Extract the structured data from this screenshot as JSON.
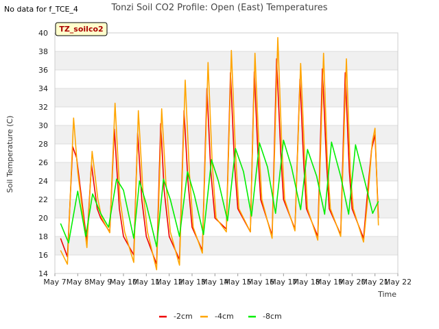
{
  "no_data_note": "No data for f_TCE_4",
  "badge_label": "TZ_soilco2",
  "chart_data": {
    "type": "line",
    "title": "Tonzi Soil CO2 Profile: Open (East) Temperatures",
    "xlabel": "Time",
    "ylabel": "Soil Temperature (C)",
    "xlim": [
      7,
      22
    ],
    "ylim": [
      14,
      40
    ],
    "x_ticks": [
      {
        "value": 7,
        "label": "May 7"
      },
      {
        "value": 8,
        "label": "May 8"
      },
      {
        "value": 9,
        "label": "May 9"
      },
      {
        "value": 10,
        "label": "May 10"
      },
      {
        "value": 11,
        "label": "May 11"
      },
      {
        "value": 12,
        "label": "May 12"
      },
      {
        "value": 13,
        "label": "May 13"
      },
      {
        "value": 14,
        "label": "May 14"
      },
      {
        "value": 15,
        "label": "May 15"
      },
      {
        "value": 16,
        "label": "May 16"
      },
      {
        "value": 17,
        "label": "May 17"
      },
      {
        "value": 18,
        "label": "May 18"
      },
      {
        "value": 19,
        "label": "May 19"
      },
      {
        "value": 20,
        "label": "May 20"
      },
      {
        "value": 21,
        "label": "May 21"
      },
      {
        "value": 22,
        "label": "May 22"
      }
    ],
    "y_ticks": [
      14,
      16,
      18,
      20,
      22,
      24,
      26,
      28,
      30,
      32,
      34,
      36,
      38,
      40
    ],
    "legend_position": "bottom-center",
    "series": [
      {
        "name": "-2cm",
        "color": "#ee0000",
        "x": [
          7.25,
          7.55,
          7.78,
          7.95,
          8.4,
          8.6,
          8.85,
          9.0,
          9.4,
          9.6,
          9.82,
          10.0,
          10.45,
          10.62,
          10.8,
          11.0,
          11.45,
          11.63,
          11.78,
          12.0,
          12.45,
          12.65,
          12.82,
          13.0,
          13.45,
          13.65,
          13.82,
          14.0,
          14.5,
          14.68,
          14.85,
          15.0,
          15.55,
          15.72,
          15.88,
          16.0,
          16.5,
          16.7,
          16.88,
          17.0,
          17.5,
          17.72,
          17.88,
          18.0,
          18.5,
          18.7,
          18.88,
          19.0,
          19.5,
          19.7,
          19.88,
          20.0,
          20.5,
          20.7,
          20.85,
          21.0,
          21.15
        ],
        "y": [
          17.8,
          15.8,
          27.7,
          26.5,
          17.4,
          25.8,
          21.0,
          20.0,
          18.5,
          29.6,
          21.0,
          18.0,
          16.0,
          29.2,
          22.0,
          18.0,
          15.0,
          30.2,
          23.0,
          18.0,
          15.5,
          31.6,
          24.0,
          19.0,
          16.5,
          34.0,
          25.0,
          20.0,
          18.8,
          35.7,
          26.0,
          21.0,
          18.5,
          35.8,
          27.0,
          22.0,
          18.1,
          37.2,
          27.0,
          22.0,
          18.8,
          35.0,
          26.0,
          21.0,
          18.0,
          36.1,
          26.0,
          21.0,
          18.2,
          35.7,
          25.0,
          21.0,
          17.8,
          23.5,
          27.4,
          29.0,
          20.0
        ]
      },
      {
        "name": "-4cm",
        "color": "#ffa500",
        "x": [
          7.25,
          7.55,
          7.82,
          8.0,
          8.4,
          8.63,
          8.88,
          9.05,
          9.4,
          9.63,
          9.85,
          10.05,
          10.45,
          10.65,
          10.85,
          11.05,
          11.45,
          11.67,
          11.85,
          12.05,
          12.45,
          12.7,
          12.88,
          13.05,
          13.45,
          13.7,
          13.88,
          14.05,
          14.5,
          14.72,
          14.9,
          15.05,
          15.55,
          15.75,
          15.92,
          16.05,
          16.5,
          16.75,
          16.92,
          17.05,
          17.5,
          17.75,
          17.92,
          18.05,
          18.5,
          18.75,
          18.92,
          19.05,
          19.5,
          19.75,
          19.92,
          20.05,
          20.5,
          20.7,
          20.88,
          21.0,
          21.15
        ],
        "y": [
          16.5,
          15.0,
          30.8,
          25.0,
          16.8,
          27.2,
          22.0,
          20.0,
          18.4,
          32.4,
          22.0,
          18.5,
          15.2,
          31.6,
          23.0,
          18.5,
          14.4,
          31.8,
          24.0,
          18.5,
          14.9,
          34.9,
          25.0,
          19.0,
          16.2,
          36.8,
          26.0,
          20.0,
          18.5,
          38.1,
          27.0,
          21.0,
          18.5,
          37.8,
          28.0,
          22.0,
          17.8,
          39.5,
          28.0,
          22.0,
          18.6,
          36.7,
          27.0,
          21.0,
          17.6,
          37.8,
          26.0,
          21.0,
          18.0,
          37.2,
          25.0,
          21.0,
          17.4,
          22.5,
          28.2,
          29.7,
          19.2
        ]
      },
      {
        "name": "-8cm",
        "color": "#00ee00",
        "x": [
          7.25,
          7.6,
          8.0,
          8.35,
          8.65,
          9.0,
          9.35,
          9.7,
          10.0,
          10.45,
          10.7,
          11.0,
          11.45,
          11.75,
          12.05,
          12.45,
          12.8,
          13.1,
          13.5,
          13.85,
          14.15,
          14.55,
          14.9,
          15.25,
          15.6,
          15.95,
          16.3,
          16.65,
          17.0,
          17.35,
          17.75,
          18.05,
          18.45,
          18.8,
          19.1,
          19.5,
          19.85,
          20.15,
          20.55,
          20.9,
          21.15
        ],
        "y": [
          19.4,
          17.3,
          22.9,
          18.0,
          22.6,
          20.5,
          19.0,
          24.2,
          23.0,
          17.8,
          24.0,
          21.5,
          16.9,
          24.2,
          22.0,
          18.0,
          25.0,
          22.5,
          18.2,
          26.3,
          24.0,
          19.7,
          27.5,
          25.0,
          20.2,
          28.1,
          25.5,
          20.5,
          28.4,
          25.5,
          20.9,
          27.4,
          24.5,
          20.4,
          28.2,
          24.5,
          20.4,
          27.9,
          24.0,
          20.5,
          21.8
        ]
      }
    ]
  }
}
